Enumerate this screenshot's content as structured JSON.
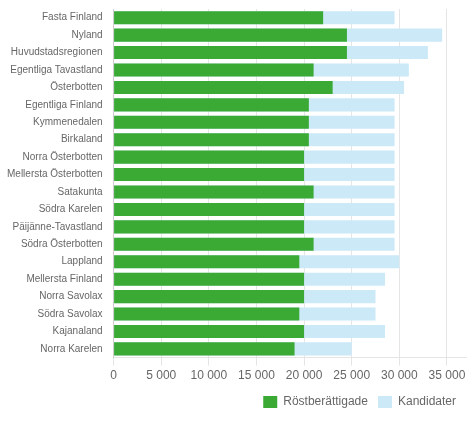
{
  "chart_data": {
    "type": "bar",
    "orientation": "horizontal",
    "categories": [
      "Norra Karelen",
      "Kajanaland",
      "Södra Savolax",
      "Norra Savolax",
      "Mellersta Finland",
      "Lappland",
      "Södra Österbotten",
      "Päijänne-Tavastland",
      "Södra Karelen",
      "Satakunta",
      "Mellersta Österbotten",
      "Norra Österbotten",
      "Birkaland",
      "Kymmenedalen",
      "Egentliga Finland",
      "Österbotten",
      "Egentliga Tavastland",
      "Huvudstadsregionen",
      "Nyland",
      "Fasta Finland"
    ],
    "series": [
      {
        "name": "Kandidater",
        "color": "#cce9f8",
        "values": [
          25000,
          28500,
          27500,
          27500,
          28500,
          30000,
          29500,
          29500,
          29500,
          29500,
          29500,
          29500,
          29500,
          29500,
          29500,
          30500,
          31000,
          33000,
          34500,
          29500
        ]
      },
      {
        "name": "Röstberättigade",
        "color": "#3aaa35",
        "values": [
          19000,
          20000,
          19500,
          20000,
          20000,
          19500,
          21000,
          20000,
          20000,
          21000,
          20000,
          20000,
          20500,
          20500,
          20500,
          23000,
          21000,
          24500,
          24500,
          22000
        ]
      }
    ],
    "xlim": [
      0,
      37000
    ],
    "xticks": [
      0,
      {
        "value": 5000,
        "label": "5 000"
      },
      {
        "value": 10000,
        "label": "10 000"
      },
      {
        "value": 15000,
        "label": "15 000"
      },
      {
        "value": 20000,
        "label": "20 000"
      },
      {
        "value": 25000,
        "label": "25 000"
      },
      {
        "value": 30000,
        "label": "30 000"
      },
      {
        "value": 35000,
        "label": "35 000"
      }
    ],
    "grid": true,
    "legend": "lower right"
  }
}
